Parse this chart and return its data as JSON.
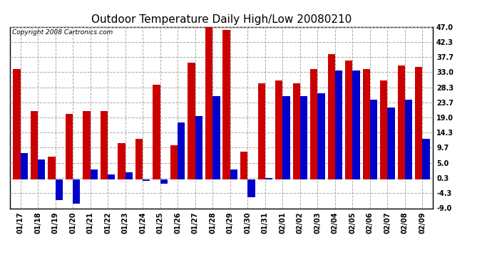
{
  "title": "Outdoor Temperature Daily High/Low 20080210",
  "copyright": "Copyright 2008 Cartronics.com",
  "background_color": "#ffffff",
  "plot_bg_color": "#ffffff",
  "grid_color": "#aaaaaa",
  "bar_color_high": "#cc0000",
  "bar_color_low": "#0000cc",
  "dates": [
    "01/17",
    "01/18",
    "01/19",
    "01/20",
    "01/21",
    "01/22",
    "01/23",
    "01/24",
    "01/25",
    "01/26",
    "01/27",
    "01/28",
    "01/29",
    "01/30",
    "01/31",
    "02/01",
    "02/02",
    "02/03",
    "02/04",
    "02/05",
    "02/06",
    "02/07",
    "02/08",
    "02/09"
  ],
  "highs": [
    34.0,
    21.0,
    7.0,
    20.0,
    21.0,
    21.0,
    11.0,
    12.5,
    29.0,
    10.5,
    36.0,
    47.0,
    46.0,
    8.5,
    29.5,
    30.5,
    29.5,
    34.0,
    38.5,
    36.5,
    34.0,
    30.5,
    35.0,
    34.5
  ],
  "lows": [
    8.0,
    6.0,
    -6.5,
    -7.5,
    3.0,
    1.5,
    2.0,
    -0.5,
    -1.5,
    17.5,
    19.5,
    25.5,
    3.0,
    -5.5,
    0.3,
    25.5,
    25.5,
    26.5,
    33.5,
    33.5,
    24.5,
    22.0,
    24.5,
    12.5
  ],
  "ylim": [
    -9.0,
    47.0
  ],
  "yticks": [
    -9.0,
    -4.3,
    0.3,
    5.0,
    9.7,
    14.3,
    19.0,
    23.7,
    28.3,
    33.0,
    37.7,
    42.3,
    47.0
  ],
  "ytick_labels": [
    "-9.0",
    "-4.3",
    "0.3",
    "5.0",
    "9.7",
    "14.3",
    "19.0",
    "23.7",
    "28.3",
    "33.0",
    "37.7",
    "42.3",
    "47.0"
  ],
  "figsize": [
    6.9,
    3.75
  ],
  "dpi": 100,
  "bar_width": 0.42,
  "title_fontsize": 11,
  "tick_fontsize": 7,
  "copyright_fontsize": 6.5
}
